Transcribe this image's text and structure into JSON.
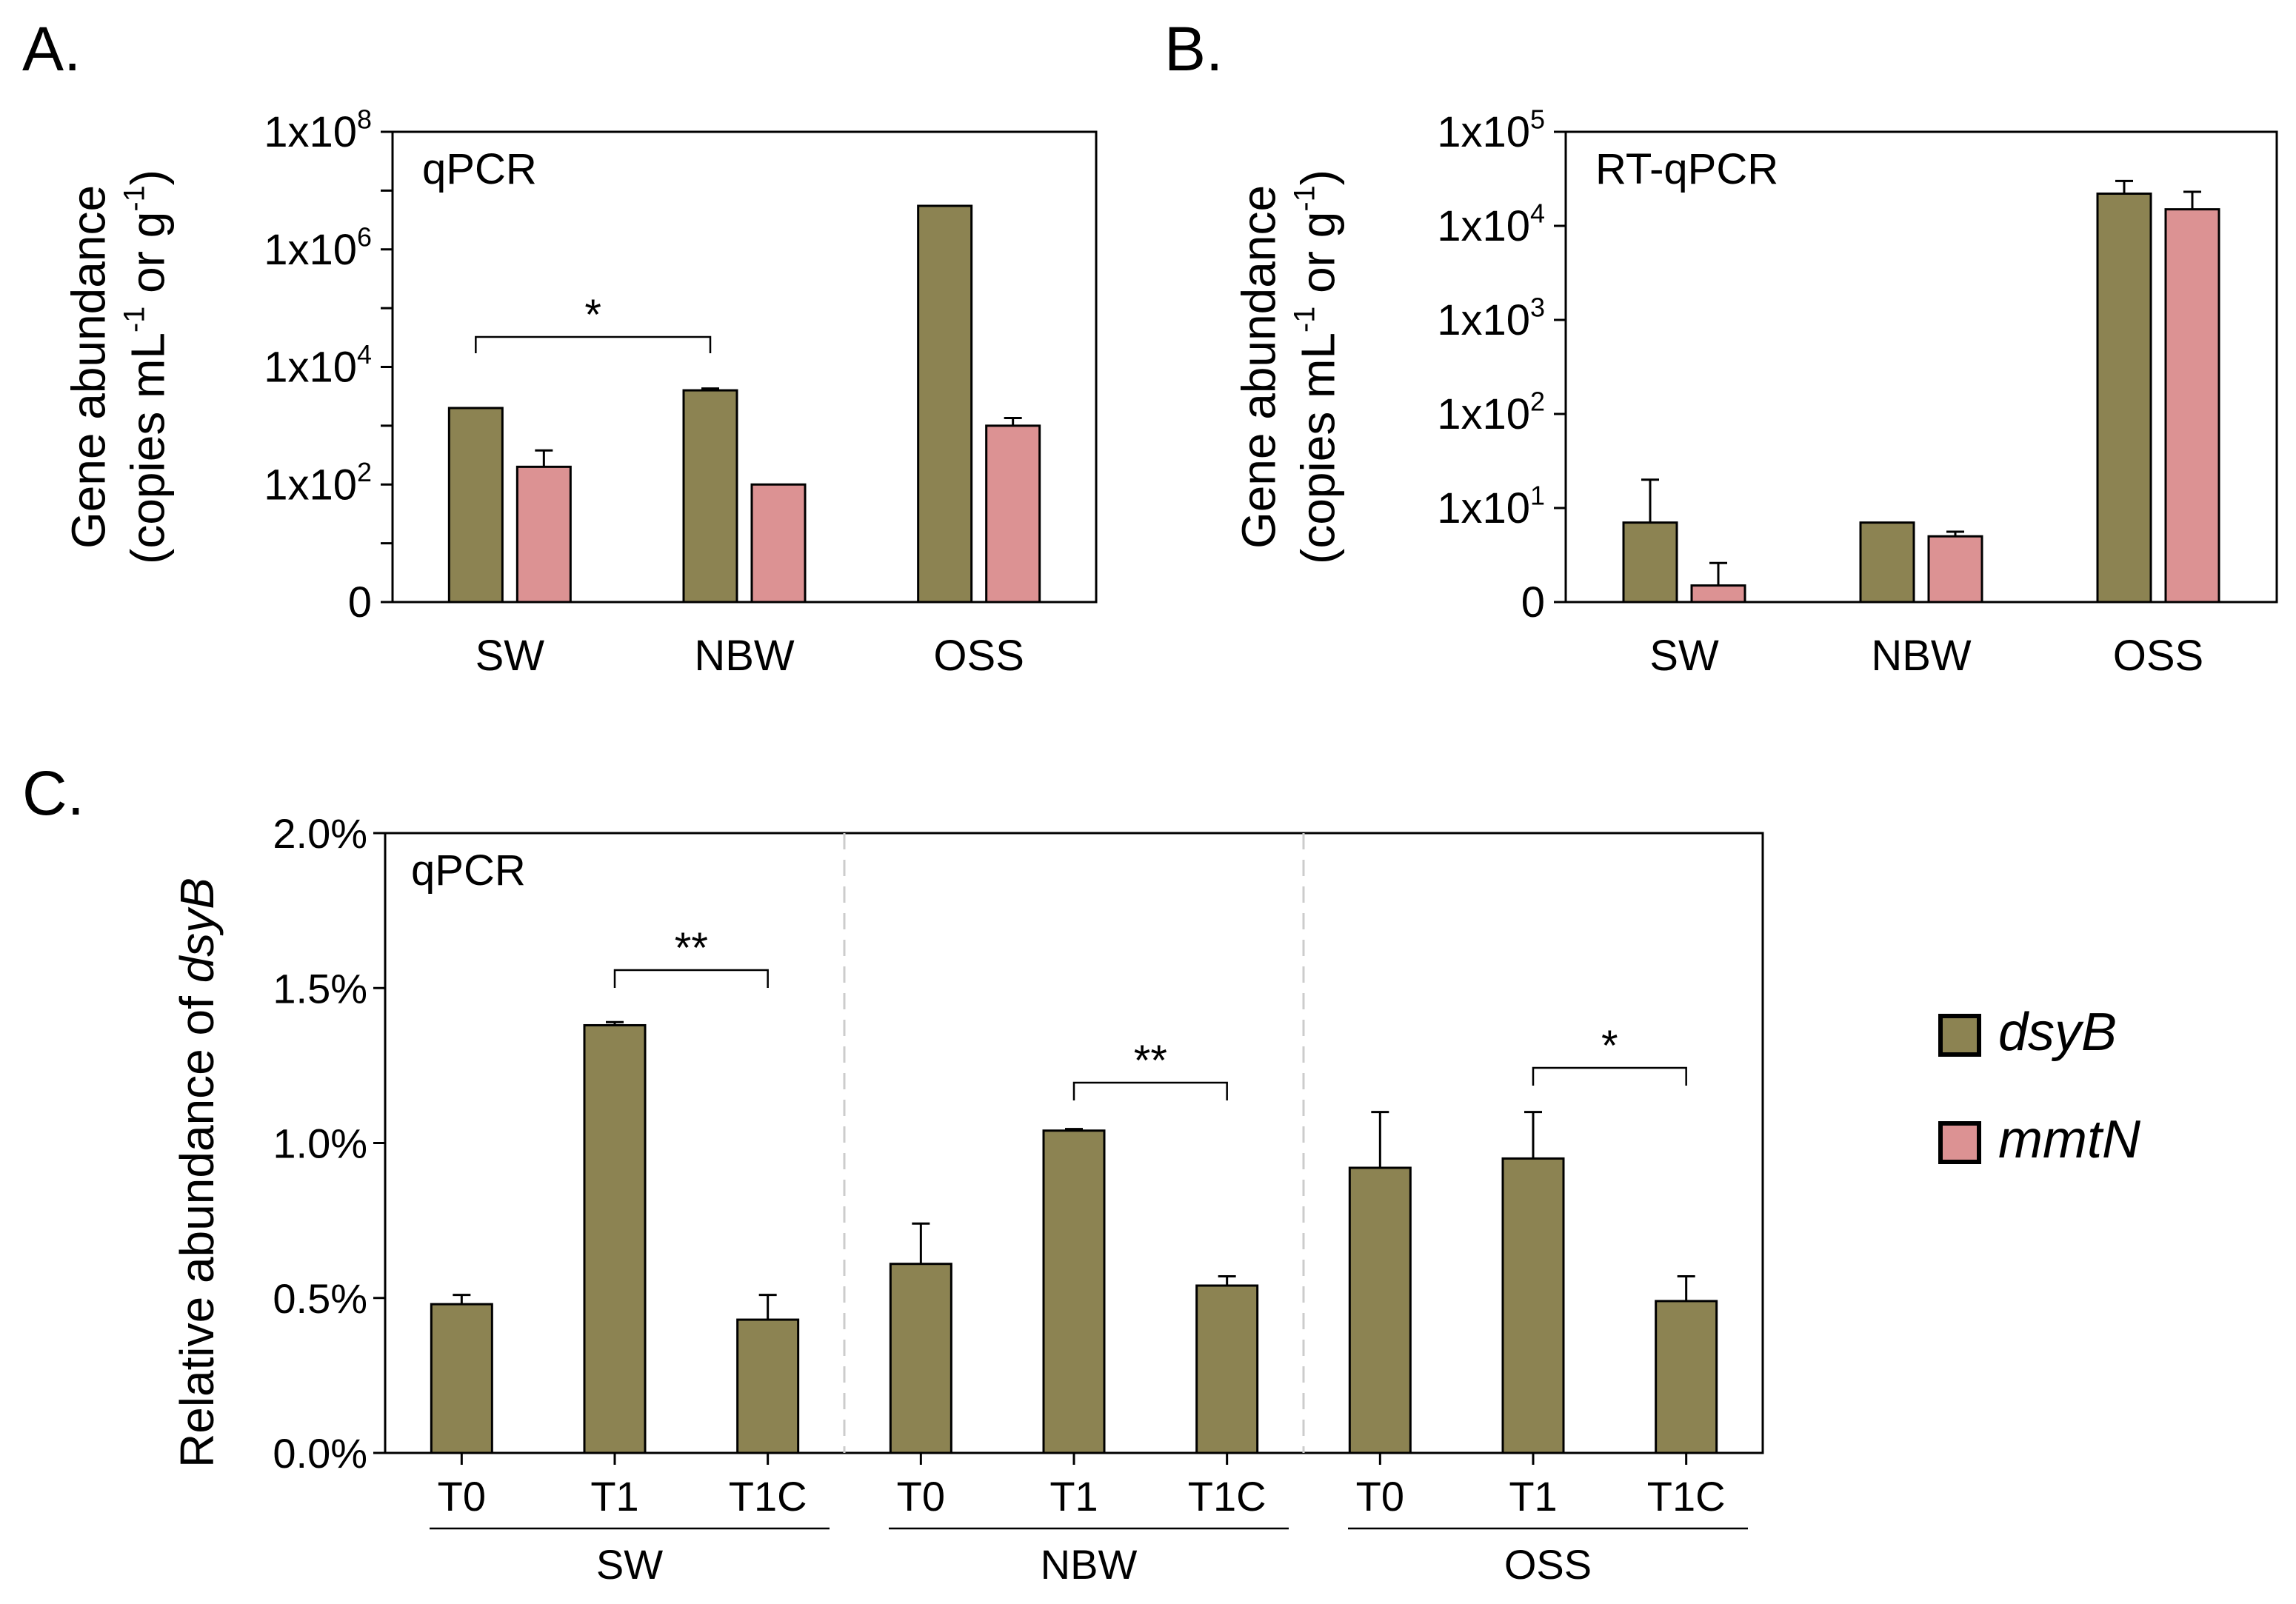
{
  "figure": {
    "colors": {
      "dsyB": "#8c8352",
      "mmtN": "#dc9293",
      "axis": "#000000",
      "divider": "#cccccc"
    }
  },
  "legend": {
    "items": [
      {
        "key": "dsyB",
        "label": "dsyB"
      },
      {
        "key": "mmtN",
        "label": "mmtN"
      }
    ]
  },
  "chart_data": [
    {
      "panel": "A.",
      "type": "bar",
      "inner_label": "qPCR",
      "ylabel": [
        "Gene abundance",
        "(copies mL",
        "-1",
        " or g",
        "-1",
        ")"
      ],
      "yscale": "log",
      "yticks": [
        {
          "value": 0,
          "base": "0",
          "exp": ""
        },
        {
          "value": 2,
          "base": "1x10",
          "exp": "2"
        },
        {
          "value": 4,
          "base": "1x10",
          "exp": "4"
        },
        {
          "value": 6,
          "base": "1x10",
          "exp": "6"
        },
        {
          "value": 8,
          "base": "1x10",
          "exp": "8"
        }
      ],
      "ylim_log10": [
        0,
        8
      ],
      "categories": [
        "SW",
        "NBW",
        "OSS"
      ],
      "series": [
        {
          "name": "dsyB",
          "values": [
            2000,
            4000,
            5500000
          ],
          "errors": [
            2100,
            4300,
            5800000
          ]
        },
        {
          "name": "mmtN",
          "values": [
            200,
            100,
            1000
          ],
          "errors": [
            380,
            100,
            1350
          ]
        }
      ],
      "annotations": [
        {
          "text": "*",
          "from": [
            0,
            "dsyB"
          ],
          "to": [
            1,
            "dsyB"
          ]
        }
      ]
    },
    {
      "panel": "B.",
      "type": "bar",
      "inner_label": "RT-qPCR",
      "ylabel": [
        "Gene abundance",
        "(copies mL",
        "-1",
        " or g",
        "-1",
        ")"
      ],
      "yscale": "log",
      "yticks": [
        {
          "value": 0,
          "base": "0",
          "exp": ""
        },
        {
          "value": 1,
          "base": "1x10",
          "exp": "1"
        },
        {
          "value": 2,
          "base": "1x10",
          "exp": "2"
        },
        {
          "value": 3,
          "base": "1x10",
          "exp": "3"
        },
        {
          "value": 4,
          "base": "1x10",
          "exp": "4"
        },
        {
          "value": 5,
          "base": "1x10",
          "exp": "5"
        }
      ],
      "ylim_log10": [
        0,
        5
      ],
      "categories": [
        "SW",
        "NBW",
        "OSS"
      ],
      "series": [
        {
          "name": "dsyB",
          "values": [
            7,
            7,
            22000
          ],
          "errors": [
            20,
            7,
            30000
          ]
        },
        {
          "name": "mmtN",
          "values": [
            1.5,
            5,
            15000
          ],
          "errors": [
            2.6,
            5.6,
            23000
          ]
        }
      ],
      "annotations": []
    },
    {
      "panel": "C.",
      "type": "bar",
      "inner_label": "qPCR",
      "ylabel": [
        "Relative abundance of ",
        "dsyB"
      ],
      "yscale": "linear",
      "yticks": [
        {
          "value": 0.0,
          "label": "0.0%"
        },
        {
          "value": 0.5,
          "label": "0.5%"
        },
        {
          "value": 1.0,
          "label": "1.0%"
        },
        {
          "value": 1.5,
          "label": "1.5%"
        },
        {
          "value": 2.0,
          "label": "2.0%"
        }
      ],
      "ylim": [
        0,
        2.0
      ],
      "groups": [
        {
          "name": "SW",
          "categories": [
            "T0",
            "T1",
            "T1C"
          ],
          "values": [
            0.48,
            1.38,
            0.43
          ],
          "errors": [
            0.51,
            1.39,
            0.51
          ]
        },
        {
          "name": "NBW",
          "categories": [
            "T0",
            "T1",
            "T1C"
          ],
          "values": [
            0.61,
            1.04,
            0.54
          ],
          "errors": [
            0.74,
            1.045,
            0.57
          ]
        },
        {
          "name": "OSS",
          "categories": [
            "T0",
            "T1",
            "T1C"
          ],
          "values": [
            0.92,
            0.95,
            0.49
          ],
          "errors": [
            1.1,
            1.1,
            0.57
          ]
        }
      ],
      "series_name": "dsyB",
      "annotations": [
        {
          "text": "**",
          "group": 0,
          "from": 1,
          "to": 2
        },
        {
          "text": "**",
          "group": 1,
          "from": 1,
          "to": 2
        },
        {
          "text": "*",
          "group": 2,
          "from": 1,
          "to": 2
        }
      ]
    }
  ]
}
